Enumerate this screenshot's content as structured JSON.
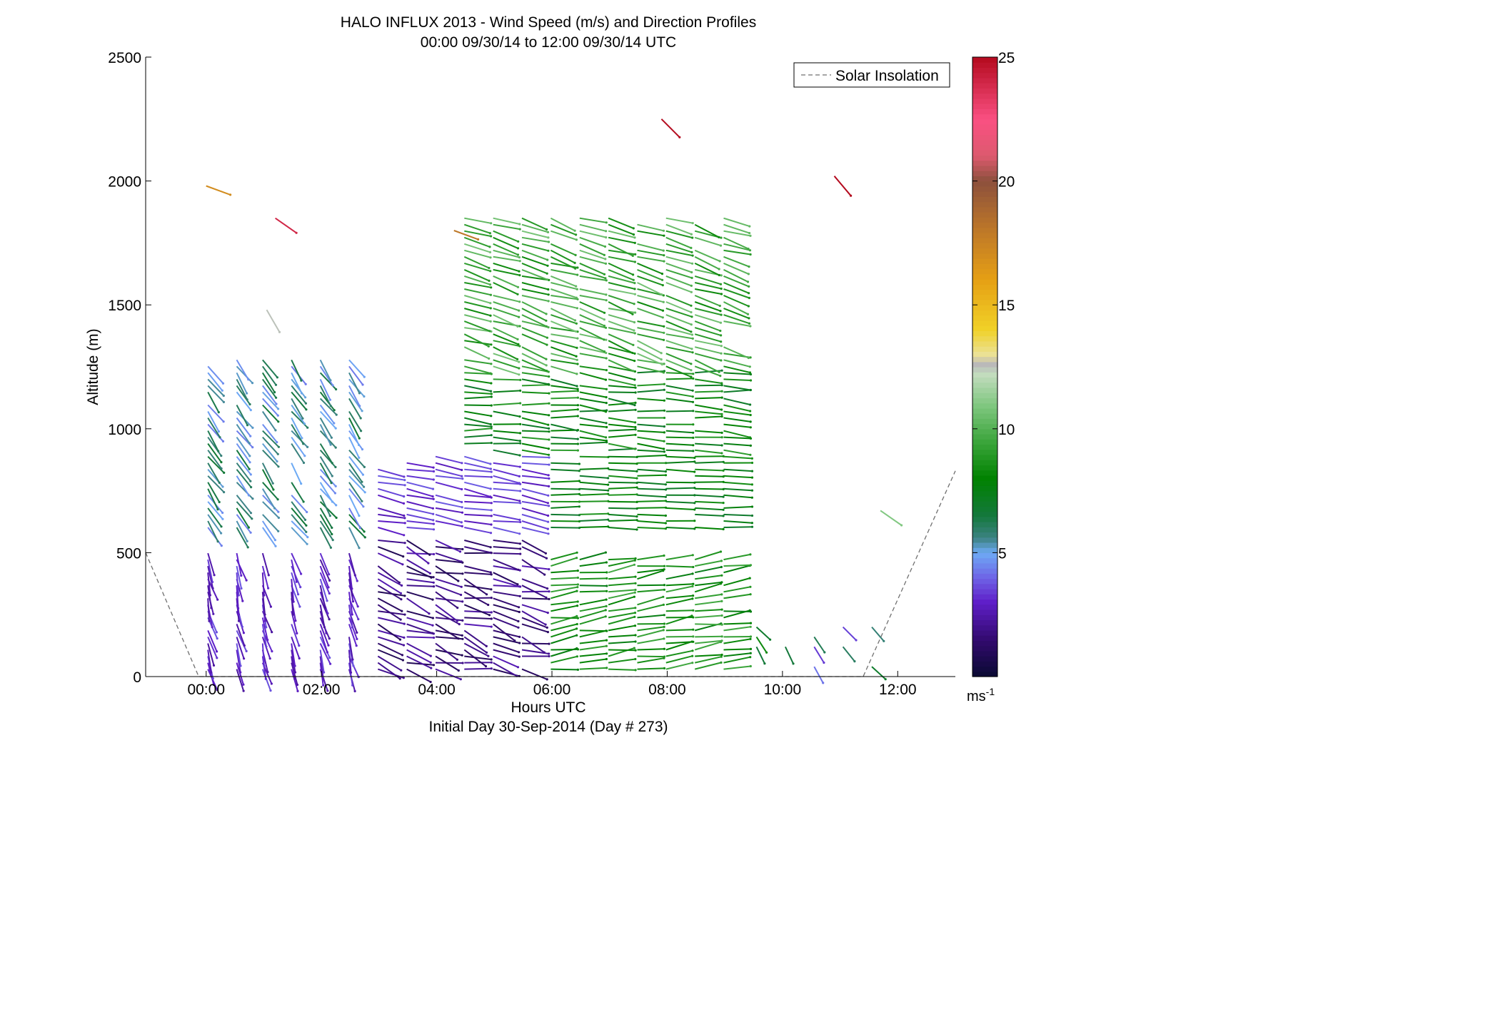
{
  "header": {
    "title": "HALO INFLUX 2013 - Wind Speed (m/s) and Direction Profiles",
    "subtitle": "00:00 09/30/14 to 12:00 09/30/14  UTC"
  },
  "footer": {
    "xlabel": "Hours UTC",
    "initial_day": "Initial Day 30-Sep-2014 (Day # 273)"
  },
  "legend": {
    "label": "Solar Insolation",
    "line_color": "#707070"
  },
  "colorbar": {
    "unit_base": "ms",
    "unit_exp": "-1",
    "ticks": [
      "5",
      "10",
      "15",
      "20",
      "25"
    ]
  },
  "chart_data": {
    "type": "scatter",
    "subtype": "wind-barb vectors",
    "title": "HALO INFLUX 2013 - Wind Speed (m/s) and Direction Profiles",
    "subtitle": "00:00 09/30/14 to 12:00 09/30/14  UTC",
    "xlabel": "Hours UTC",
    "ylabel": "Altitude (m)",
    "xlim": [
      -1.05,
      13.0
    ],
    "ylim": [
      0,
      2500
    ],
    "xticks": [
      "00:00",
      "02:00",
      "04:00",
      "06:00",
      "08:00",
      "10:00",
      "12:00"
    ],
    "yticks": [
      "0",
      "500",
      "1000",
      "1500",
      "2000",
      "2500"
    ],
    "colorbar_range": [
      0,
      25
    ],
    "legend_position": "top-right",
    "solar_insolation": {
      "name": "Solar Insolation",
      "x": [
        -1.05,
        -0.13,
        11.4,
        13.0
      ],
      "y": [
        500,
        0,
        0,
        830
      ]
    },
    "profiles_hours": [
      0.25,
      0.75,
      1.2,
      1.7,
      2.2,
      2.7,
      3.2,
      3.7,
      4.2,
      4.7,
      5.2,
      5.7,
      6.2,
      6.7,
      7.2,
      7.7,
      8.2,
      8.7,
      9.2,
      9.7,
      10.2,
      10.7,
      11.2,
      11.7
    ],
    "wind_regimes": [
      {
        "hours": [
          0.0,
          3.0
        ],
        "alt": [
          0,
          520
        ],
        "speed": 3.0,
        "direction": "from north-northwest"
      },
      {
        "hours": [
          0.0,
          3.0
        ],
        "alt": [
          580,
          1300
        ],
        "speed": 5.5,
        "direction": "from northwest"
      },
      {
        "hours": [
          3.0,
          6.0
        ],
        "alt": [
          0,
          550
        ],
        "speed": 1.8,
        "direction": "from west-northwest"
      },
      {
        "hours": [
          3.0,
          6.0
        ],
        "alt": [
          580,
          900
        ],
        "speed": 3.3,
        "direction": "from west"
      },
      {
        "hours": [
          4.5,
          9.2
        ],
        "alt": [
          580,
          1250
        ],
        "speed": 8.0,
        "direction": "from west"
      },
      {
        "hours": [
          4.5,
          9.2
        ],
        "alt": [
          1250,
          1850
        ],
        "speed": 9.5,
        "direction": "from west-northwest"
      },
      {
        "hours": [
          6.0,
          9.2
        ],
        "alt": [
          0,
          480
        ],
        "speed": 8.5,
        "direction": "from west-southwest"
      }
    ],
    "sparse_points": [
      {
        "time": 0.2,
        "alt": 1980,
        "speed": 17,
        "dir_deg": -160
      },
      {
        "time": 1.4,
        "alt": 1850,
        "speed": 24,
        "dir_deg": 35
      },
      {
        "time": 4.5,
        "alt": 1800,
        "speed": 18,
        "dir_deg": -160
      },
      {
        "time": 8.1,
        "alt": 2250,
        "speed": 25,
        "dir_deg": -135
      },
      {
        "time": 11.1,
        "alt": 2020,
        "speed": 25,
        "dir_deg": -130
      },
      {
        "time": 11.9,
        "alt": 670,
        "speed": 11,
        "dir_deg": 35
      },
      {
        "time": 1.25,
        "alt": 1480,
        "speed": 12.5,
        "dir_deg": 60
      }
    ]
  }
}
